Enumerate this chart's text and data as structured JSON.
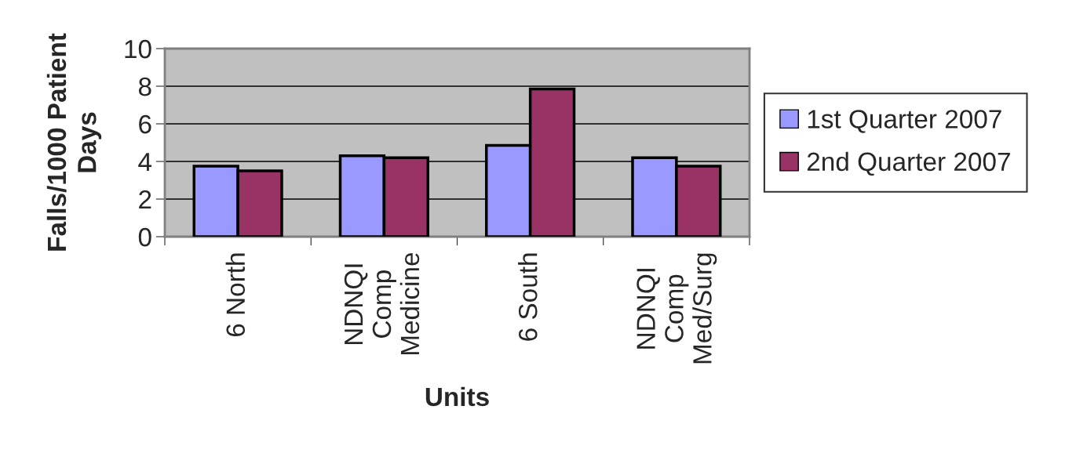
{
  "chart_data": {
    "type": "bar",
    "xlabel": "Units",
    "ylabel": "Falls/1000 Patient\nDays",
    "categories": [
      "6 North",
      "NDNQI\nComp\nMedicine",
      "6 South",
      "NDNQI\nComp\nMed/Surg"
    ],
    "series": [
      {
        "name": "1st Quarter 2007",
        "color": "#9999ff",
        "values": [
          3.75,
          4.3,
          4.85,
          4.2
        ]
      },
      {
        "name": "2nd Quarter 2007",
        "color": "#993366",
        "values": [
          3.5,
          4.2,
          7.85,
          3.75
        ]
      }
    ],
    "ylim": [
      0,
      10
    ],
    "yticks": [
      0,
      2,
      4,
      6,
      8,
      10
    ],
    "grid": "y",
    "legend": "right"
  }
}
